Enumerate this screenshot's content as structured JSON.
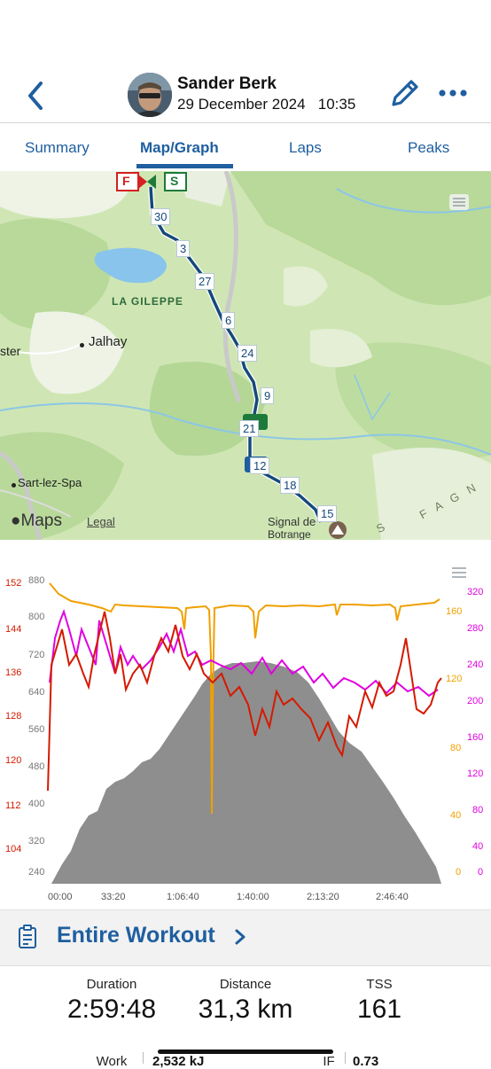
{
  "header": {
    "name": "Sander Berk",
    "date": "29 December 2024",
    "time": "10:35"
  },
  "tabs": [
    "Summary",
    "Map/Graph",
    "Laps",
    "Peaks"
  ],
  "map": {
    "labels": {
      "lagileppe": "LA GILEPPE",
      "jalhay": "Jalhay",
      "ster": "ster",
      "sartlezspa": "Sart-lez-Spa",
      "signal1": "Signal de",
      "signal2": "Botrange",
      "fagne": "F A G N",
      "s": "S",
      "maps": "Maps",
      "legal": "Legal"
    },
    "markers": {
      "finish": "F",
      "start": "S"
    },
    "km_markers": [
      "30",
      "3",
      "27",
      "6",
      "24",
      "9",
      "21",
      "12",
      "18",
      "15"
    ]
  },
  "graph": {
    "left_red_axis": [
      "152",
      "144",
      "136",
      "128",
      "120",
      "112",
      "104"
    ],
    "left_gray_axis": [
      "880",
      "800",
      "720",
      "640",
      "560",
      "480",
      "400",
      "320",
      "240"
    ],
    "right_orange_axis": [
      "160",
      "120",
      "80",
      "40",
      "0"
    ],
    "right_magenta_axis": [
      "320",
      "280",
      "240",
      "200",
      "160",
      "120",
      "80",
      "40",
      "0"
    ],
    "x_axis": [
      "00:00",
      "33:20",
      "1:06:40",
      "1:40:00",
      "2:13:20",
      "2:46:40"
    ],
    "colors": {
      "heart_rate": "#d41a00",
      "cadence": "#f0a000",
      "power": "#e000e0",
      "elevation": "#8e8e8e"
    }
  },
  "workout": {
    "title": "Entire Workout"
  },
  "stats": {
    "duration_label": "Duration",
    "duration_value": "2:59:48",
    "distance_label": "Distance",
    "distance_value": "31,3 km",
    "tss_label": "TSS",
    "tss_value": "161",
    "work_label": "Work",
    "work_value": "2,532 kJ",
    "if_label": "IF",
    "if_value": "0.73"
  }
}
